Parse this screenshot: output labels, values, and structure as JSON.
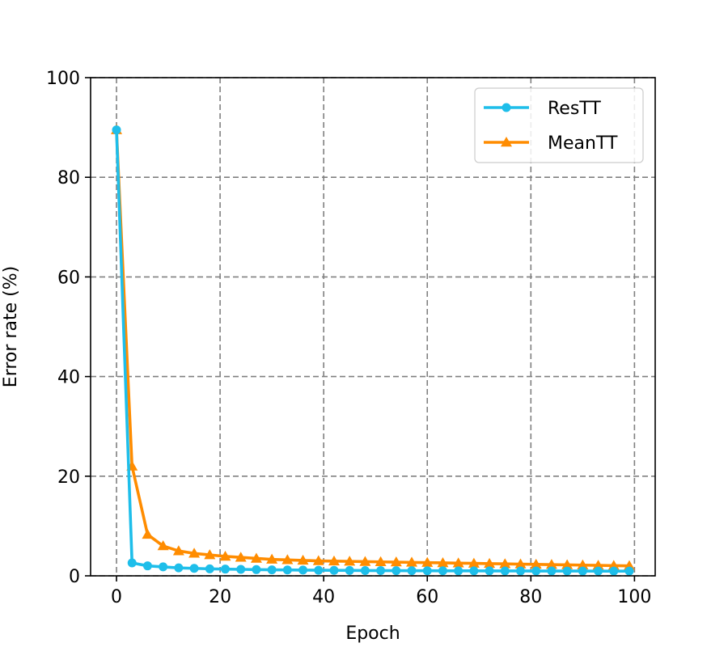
{
  "chart_data": {
    "type": "line",
    "xlabel": "Epoch",
    "ylabel": "Error rate (%)",
    "xlim": [
      -5,
      104
    ],
    "ylim": [
      0,
      100
    ],
    "xticks": [
      0,
      20,
      40,
      60,
      80,
      100
    ],
    "yticks": [
      0,
      20,
      40,
      60,
      80,
      100
    ],
    "grid": true,
    "legend_position": "top-right",
    "x": [
      0,
      3,
      6,
      9,
      12,
      15,
      18,
      21,
      24,
      27,
      30,
      33,
      36,
      39,
      42,
      45,
      48,
      51,
      54,
      57,
      60,
      63,
      66,
      69,
      72,
      75,
      78,
      81,
      84,
      87,
      90,
      93,
      96,
      99
    ],
    "series": [
      {
        "name": "ResTT",
        "color": "#1ebeea",
        "marker": "circle",
        "values": [
          89.5,
          2.6,
          2.0,
          1.8,
          1.6,
          1.5,
          1.4,
          1.35,
          1.3,
          1.25,
          1.2,
          1.18,
          1.15,
          1.12,
          1.1,
          1.08,
          1.06,
          1.05,
          1.04,
          1.03,
          1.02,
          1.01,
          1.0,
          1.0,
          0.99,
          0.98,
          0.98,
          0.97,
          0.97,
          0.96,
          0.96,
          0.95,
          0.95,
          0.95
        ]
      },
      {
        "name": "MeanTT",
        "color": "#ff8c00",
        "marker": "triangle",
        "values": [
          89.5,
          22.0,
          8.3,
          6.0,
          5.0,
          4.5,
          4.2,
          3.9,
          3.7,
          3.5,
          3.3,
          3.2,
          3.1,
          3.0,
          2.95,
          2.9,
          2.85,
          2.8,
          2.75,
          2.7,
          2.65,
          2.6,
          2.55,
          2.5,
          2.45,
          2.4,
          2.35,
          2.3,
          2.25,
          2.2,
          2.15,
          2.1,
          2.05,
          2.0
        ]
      }
    ]
  }
}
